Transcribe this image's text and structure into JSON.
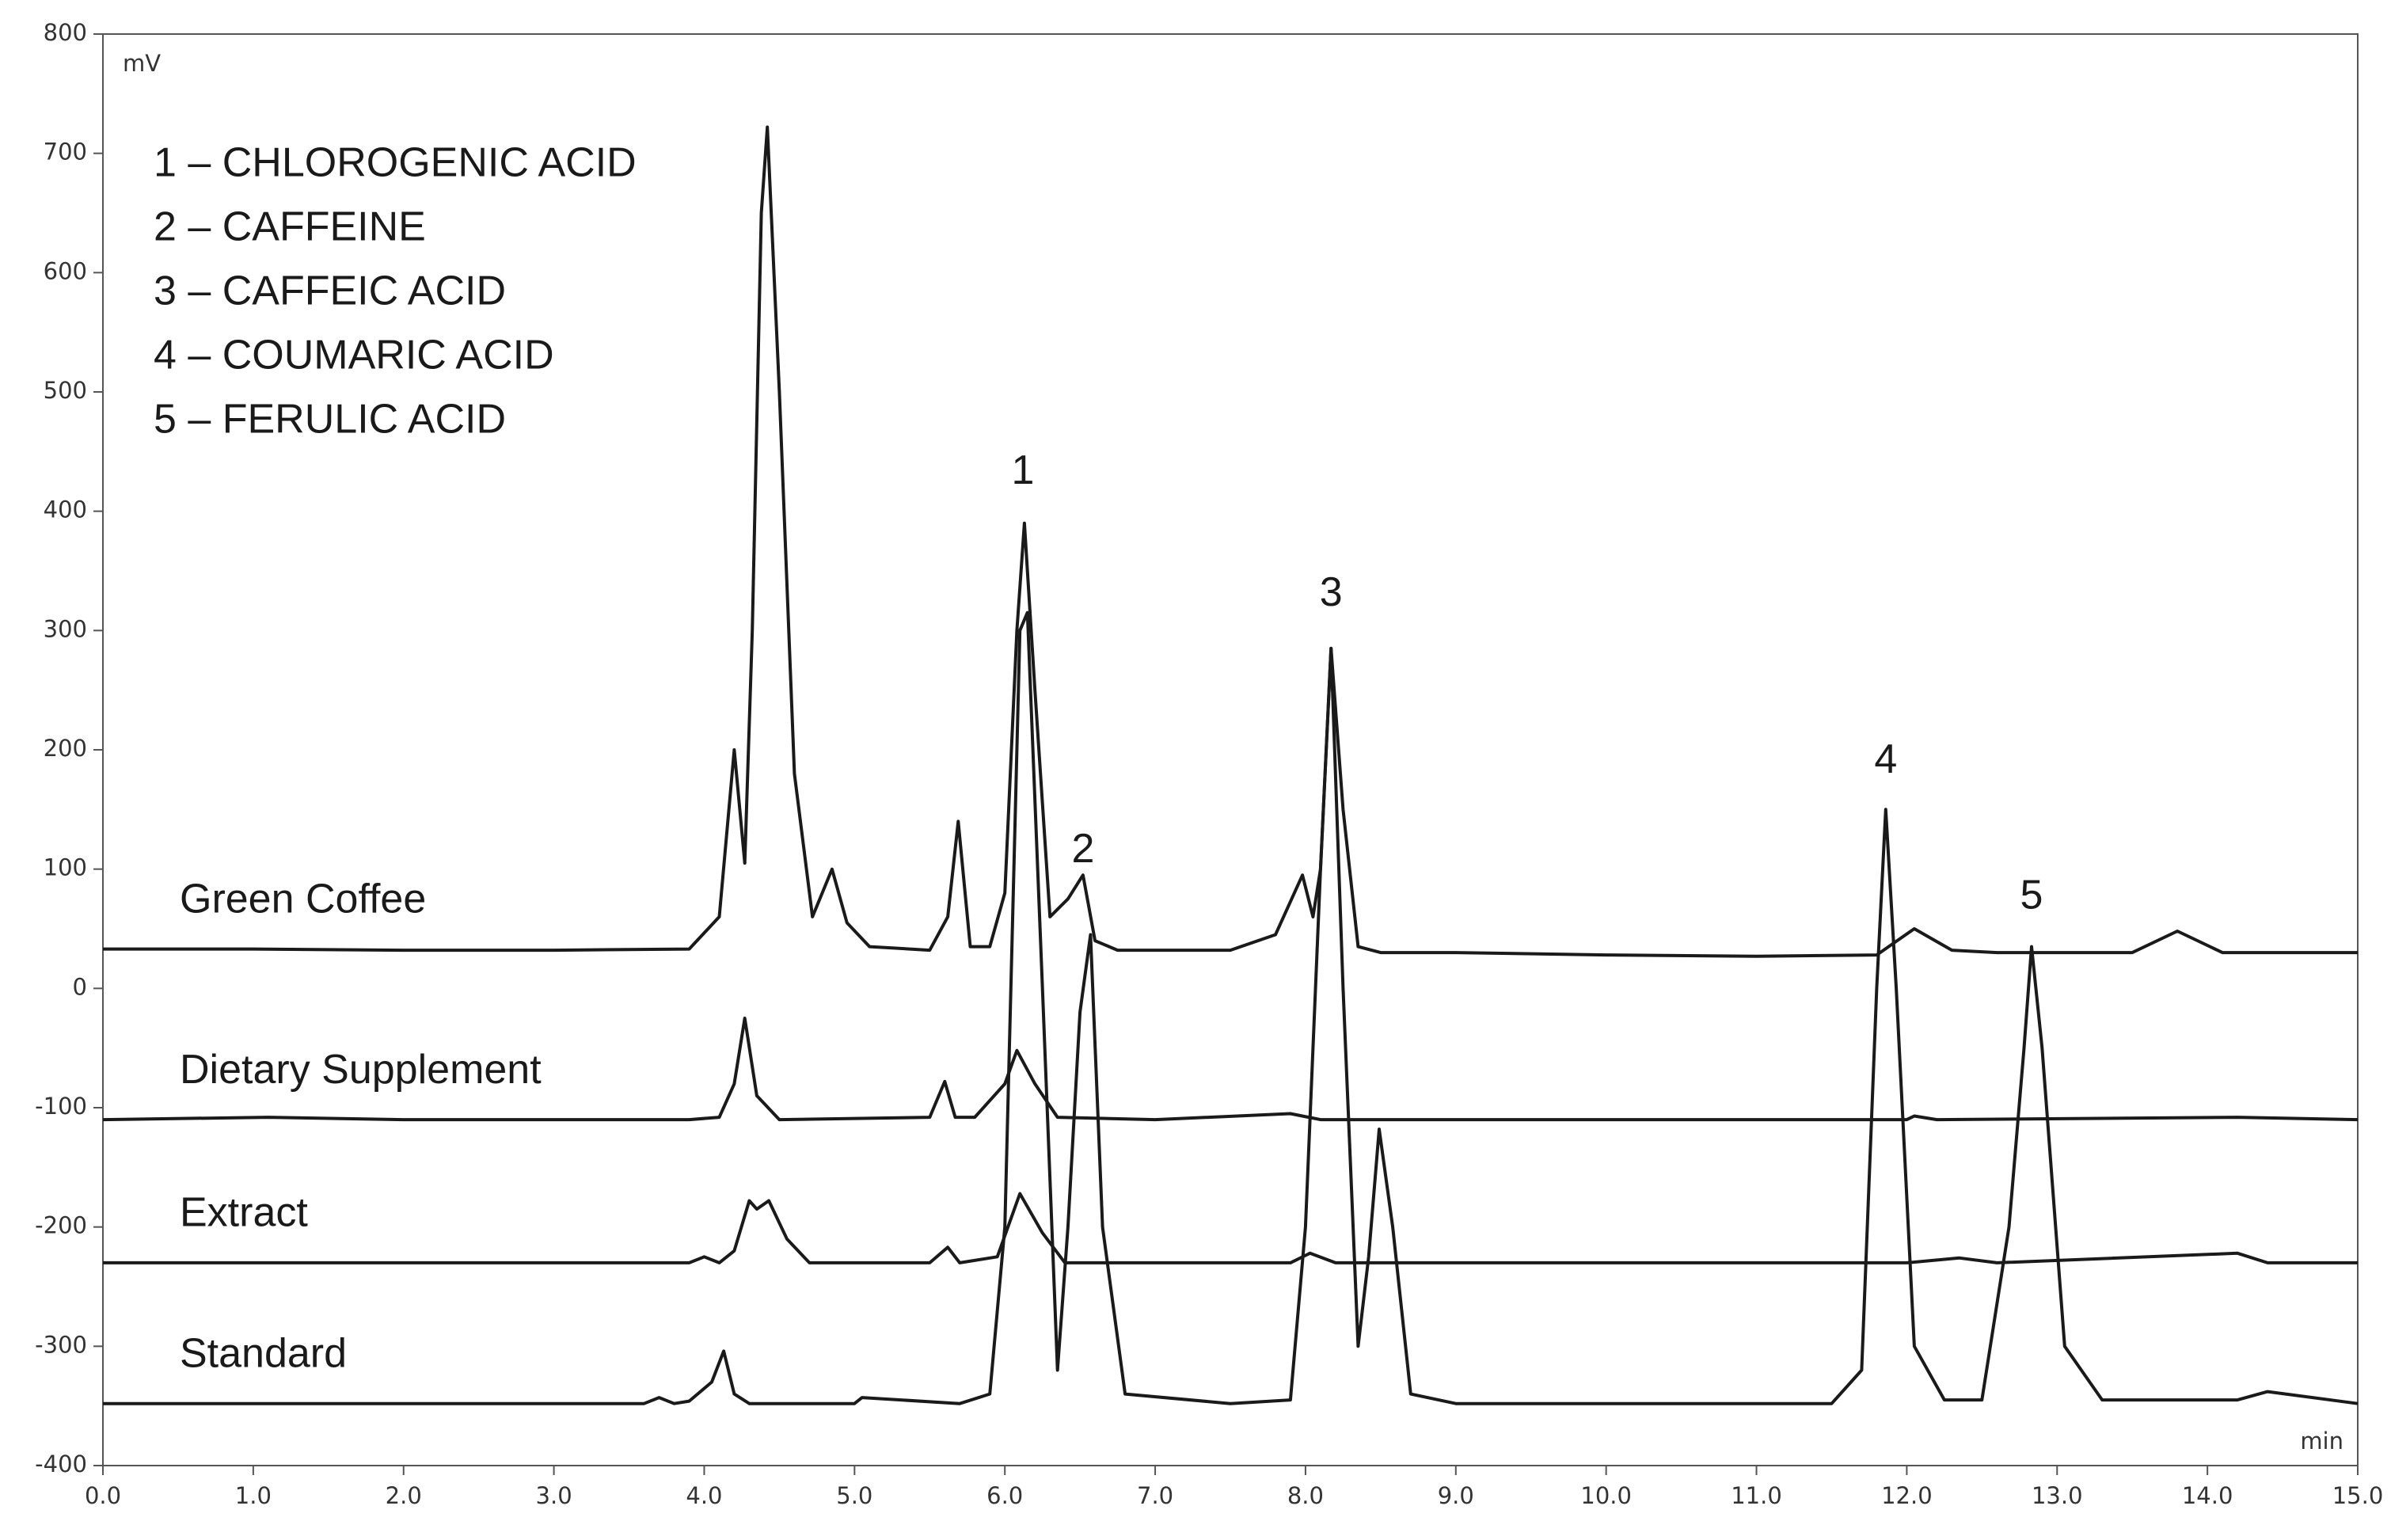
{
  "chart_data": {
    "type": "line",
    "x_unit": "min",
    "y_unit": "mV",
    "legend_lines": [
      "1 – CHLOROGENIC ACID",
      "2 – CAFFEINE",
      "3 – CAFFEIC ACID",
      "4 – COUMARIC ACID",
      "5 – FERULIC ACID"
    ],
    "xlim": [
      0,
      15
    ],
    "ylim": [
      -400,
      800
    ],
    "xticks": [
      {
        "value": 0,
        "label": "0.0"
      },
      {
        "value": 1,
        "label": "1.0"
      },
      {
        "value": 2,
        "label": "2.0"
      },
      {
        "value": 3,
        "label": "3.0"
      },
      {
        "value": 4,
        "label": "4.0"
      },
      {
        "value": 5,
        "label": "5.0"
      },
      {
        "value": 6,
        "label": "6.0"
      },
      {
        "value": 7,
        "label": "7.0"
      },
      {
        "value": 8,
        "label": "8.0"
      },
      {
        "value": 9,
        "label": "9.0"
      },
      {
        "value": 10,
        "label": "10.0"
      },
      {
        "value": 11,
        "label": "11.0"
      },
      {
        "value": 12,
        "label": "12.0"
      },
      {
        "value": 13,
        "label": "13.0"
      },
      {
        "value": 14,
        "label": "14.0"
      },
      {
        "value": 15,
        "label": "15.0"
      }
    ],
    "yticks": [
      -400,
      -300,
      -200,
      -100,
      0,
      100,
      200,
      300,
      400,
      500,
      600,
      700,
      800
    ],
    "annotations": [
      {
        "text": "1",
        "x": 6.12,
        "y": 432
      },
      {
        "text": "2",
        "x": 6.52,
        "y": 115
      },
      {
        "text": "3",
        "x": 8.17,
        "y": 330
      },
      {
        "text": "4",
        "x": 11.86,
        "y": 190
      },
      {
        "text": "5",
        "x": 12.83,
        "y": 76
      }
    ],
    "series": [
      {
        "name": "Green Coffee",
        "color": "#1a1a1a",
        "x": [
          0,
          1,
          2,
          3,
          3.9,
          4.1,
          4.2,
          4.27,
          4.32,
          4.38,
          4.42,
          4.5,
          4.6,
          4.72,
          4.85,
          4.95,
          5.1,
          5.5,
          5.62,
          5.69,
          5.77,
          5.9,
          6.0,
          6.08,
          6.13,
          6.2,
          6.3,
          6.42,
          6.52,
          6.6,
          6.75,
          7.0,
          7.5,
          7.8,
          7.98,
          8.05,
          8.1,
          8.17,
          8.25,
          8.35,
          8.5,
          9,
          10,
          11,
          11.8,
          12.05,
          12.3,
          12.6,
          13.5,
          13.8,
          14.1,
          15
        ],
        "values": [
          33,
          33,
          32,
          32,
          33,
          60,
          200,
          105,
          300,
          650,
          722,
          500,
          180,
          60,
          100,
          55,
          35,
          32,
          60,
          140,
          35,
          35,
          80,
          300,
          390,
          250,
          60,
          75,
          95,
          40,
          32,
          32,
          32,
          45,
          95,
          60,
          100,
          285,
          150,
          35,
          30,
          30,
          28,
          27,
          28,
          50,
          32,
          30,
          30,
          48,
          30,
          30
        ]
      },
      {
        "name": "Dietary Supplement",
        "color": "#1a1a1a",
        "x": [
          0,
          1.1,
          2,
          3.9,
          4.1,
          4.2,
          4.27,
          4.35,
          4.5,
          5.5,
          5.6,
          5.67,
          5.8,
          6.0,
          6.08,
          6.2,
          6.35,
          7,
          7.9,
          8.1,
          12,
          12.05,
          12.2,
          14.2,
          15
        ],
        "values": [
          -110,
          -108,
          -110,
          -110,
          -108,
          -80,
          -25,
          -90,
          -110,
          -108,
          -78,
          -108,
          -108,
          -80,
          -52,
          -80,
          -108,
          -110,
          -105,
          -110,
          -110,
          -107,
          -110,
          -108,
          -110
        ]
      },
      {
        "name": "Extract",
        "color": "#1a1a1a",
        "x": [
          0,
          3.9,
          4.0,
          4.1,
          4.2,
          4.3,
          4.35,
          4.43,
          4.55,
          4.7,
          5.5,
          5.62,
          5.7,
          5.95,
          6.1,
          6.25,
          6.4,
          7.9,
          8.03,
          8.2,
          12,
          12.35,
          12.6,
          14.2,
          14.4,
          15
        ],
        "values": [
          -230,
          -230,
          -225,
          -230,
          -220,
          -178,
          -185,
          -178,
          -210,
          -230,
          -230,
          -217,
          -230,
          -225,
          -172,
          -205,
          -230,
          -230,
          -222,
          -230,
          -230,
          -226,
          -230,
          -222,
          -230,
          -230
        ]
      },
      {
        "name": "Standard",
        "color": "#1a1a1a",
        "x": [
          0,
          3.6,
          3.7,
          3.8,
          3.9,
          4.05,
          4.13,
          4.2,
          4.3,
          5,
          5.05,
          5.7,
          5.9,
          6.0,
          6.1,
          6.15,
          6.25,
          6.35,
          6.42,
          6.5,
          6.57,
          6.65,
          6.8,
          7.5,
          7.9,
          8.0,
          8.1,
          8.17,
          8.25,
          8.35,
          8.42,
          8.49,
          8.58,
          8.7,
          9,
          11.5,
          11.7,
          11.8,
          11.86,
          11.93,
          12.05,
          12.25,
          12.5,
          12.68,
          12.78,
          12.83,
          12.9,
          13.05,
          13.3,
          14.2,
          14.4,
          15
        ],
        "values": [
          -348,
          -348,
          -343,
          -348,
          -346,
          -330,
          -304,
          -340,
          -348,
          -348,
          -343,
          -348,
          -340,
          -200,
          300,
          315,
          0,
          -320,
          -200,
          -20,
          45,
          -200,
          -340,
          -348,
          -345,
          -200,
          100,
          285,
          0,
          -300,
          -225,
          -118,
          -200,
          -340,
          -348,
          -348,
          -320,
          0,
          150,
          0,
          -300,
          -345,
          -345,
          -200,
          -50,
          35,
          -50,
          -300,
          -345,
          -345,
          -338,
          -348
        ]
      }
    ]
  }
}
